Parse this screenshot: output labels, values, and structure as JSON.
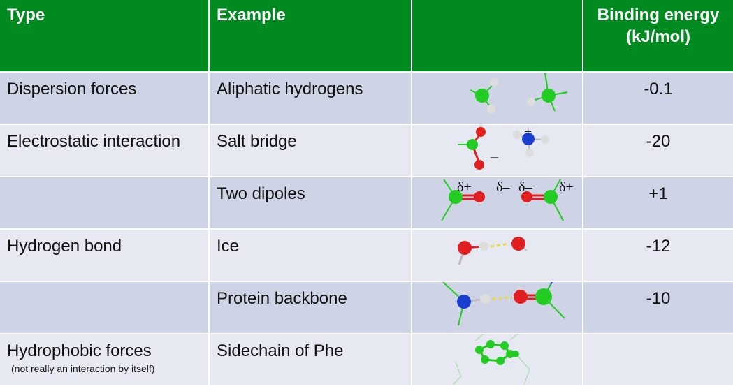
{
  "header": {
    "type": "Type",
    "example": "Example",
    "image": "",
    "energy": "Binding energy (kJ/mol)"
  },
  "rows": [
    {
      "type": "Dispersion forces",
      "example": "Aliphatic hydrogens",
      "energy": "-0.1"
    },
    {
      "type": "Electrostatic interaction",
      "example": "Salt bridge",
      "energy": "-20"
    },
    {
      "type": "",
      "example": "Two dipoles",
      "energy": "+1"
    },
    {
      "type": "Hydrogen bond",
      "example": "Ice",
      "energy": "-12"
    },
    {
      "type": "",
      "example": "Protein backbone",
      "energy": "-10"
    },
    {
      "type": "Hydrophobic forces",
      "note": "(not really an interaction by itself)",
      "example": "Sidechain of Phe",
      "energy": ""
    }
  ],
  "labels": {
    "minus": "–",
    "plus": "+",
    "delta_plus": "δ+",
    "delta_minus": "δ–"
  },
  "colors": {
    "header_green": "#008a1f",
    "row_dark": "#cfd3e6",
    "row_light": "#e7e9f2",
    "carbon": "#22cc22",
    "oxygen": "#e02020",
    "nitrogen": "#1a3fd0",
    "hydrogen": "#dddddd"
  }
}
